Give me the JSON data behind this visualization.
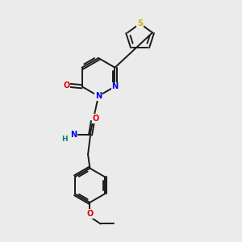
{
  "background_color": "#ebebeb",
  "bond_color": "#1a1a1a",
  "atom_colors": {
    "S": "#c8b400",
    "N": "#0000e0",
    "O": "#e00000",
    "H": "#008080",
    "C": "#1a1a1a"
  },
  "figsize": [
    3.0,
    3.0
  ],
  "dpi": 100
}
